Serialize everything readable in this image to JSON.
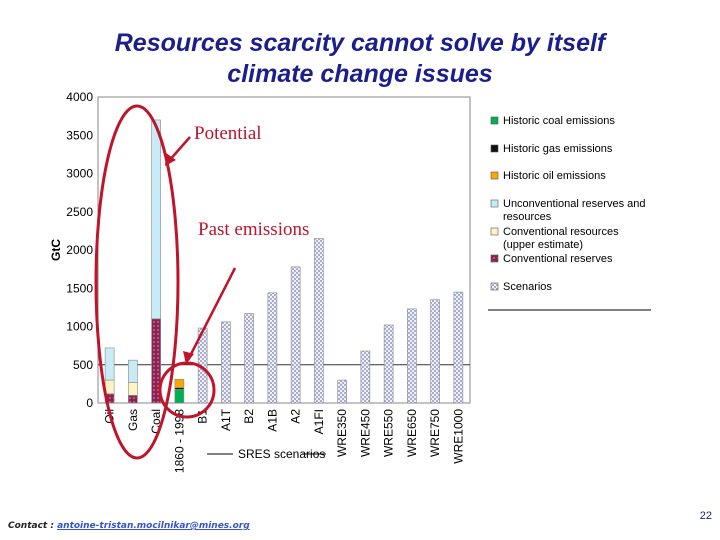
{
  "slide": {
    "title_line1": "Resources scarcity cannot solve by itself",
    "title_line2": "climate change issues",
    "contact_label": "Contact :",
    "contact_email": "antoine-tristan.mocilnikar@mines.org",
    "page_number": "22"
  },
  "annotations": {
    "potential": "Potential",
    "past_emissions": "Past emissions"
  },
  "colors": {
    "coal": "#00b050",
    "gas": "#111111",
    "oil": "#ffa500",
    "unconventional": "#c8ecf6",
    "conventional_resources": "#fff4c4",
    "conventional_reserves": "#8b2252",
    "scenarios": "#d8dcf0",
    "annotation": "#c0142a"
  },
  "chart_data": {
    "type": "bar",
    "ylabel": "GtC",
    "ylim": [
      0,
      4000
    ],
    "yticks": [
      0,
      500,
      1000,
      1500,
      2000,
      2500,
      3000,
      3500,
      4000
    ],
    "group_label": "SRES scenarios",
    "categories": [
      "Oil",
      "Gas",
      "Coal",
      "1860 - 1998",
      "B1",
      "A1T",
      "B2",
      "A1B",
      "A2",
      "A1FI",
      "WRE350",
      "WRE450",
      "WRE550",
      "WRE650",
      "WRE750",
      "WRE1000"
    ],
    "series": [
      {
        "name": "Historic coal emissions",
        "values": [
          0,
          0,
          0,
          180,
          0,
          0,
          0,
          0,
          0,
          0,
          0,
          0,
          0,
          0,
          0,
          0
        ]
      },
      {
        "name": "Historic gas emissions",
        "values": [
          0,
          0,
          0,
          20,
          0,
          0,
          0,
          0,
          0,
          0,
          0,
          0,
          0,
          0,
          0,
          0
        ]
      },
      {
        "name": "Historic oil emissions",
        "values": [
          0,
          0,
          0,
          110,
          0,
          0,
          0,
          0,
          0,
          0,
          0,
          0,
          0,
          0,
          0,
          0
        ]
      },
      {
        "name": "Unconventional reserves and resources",
        "values": [
          420,
          290,
          2600,
          0,
          0,
          0,
          0,
          0,
          0,
          0,
          0,
          0,
          0,
          0,
          0,
          0
        ]
      },
      {
        "name": "Conventional resources (upper estimate)",
        "values": [
          180,
          170,
          0,
          0,
          0,
          0,
          0,
          0,
          0,
          0,
          0,
          0,
          0,
          0,
          0,
          0
        ]
      },
      {
        "name": "Conventional reserves",
        "values": [
          120,
          100,
          1100,
          0,
          0,
          0,
          0,
          0,
          0,
          0,
          0,
          0,
          0,
          0,
          0,
          0
        ]
      },
      {
        "name": "Scenarios",
        "values": [
          0,
          0,
          0,
          0,
          980,
          1060,
          1170,
          1440,
          1780,
          2150,
          300,
          680,
          1020,
          1230,
          1350,
          1450
        ]
      }
    ],
    "reference_line": 500,
    "legend_position": "right"
  }
}
